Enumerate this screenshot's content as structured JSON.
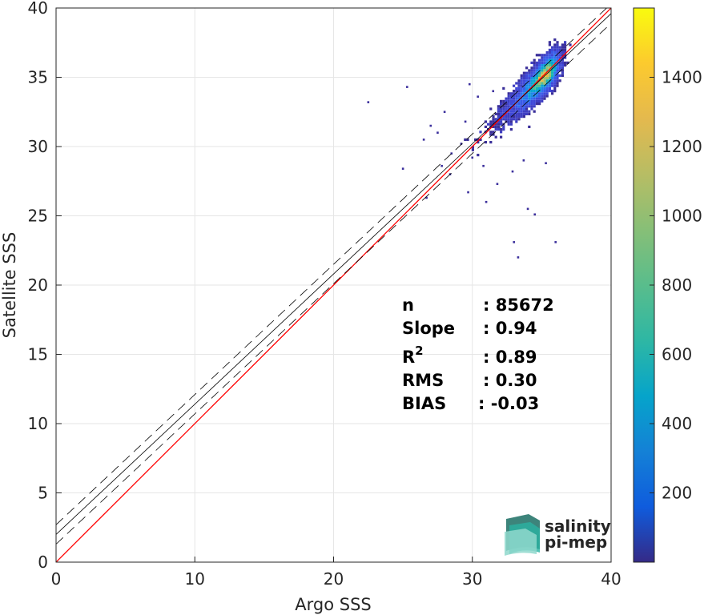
{
  "chart_data": {
    "type": "heatmap",
    "subtype": "density-scatter",
    "xlabel": "Argo SSS",
    "ylabel": "Satellite SSS",
    "xlim": [
      0,
      40
    ],
    "ylim": [
      0,
      40
    ],
    "xticks": [
      0,
      10,
      20,
      30,
      40
    ],
    "yticks": [
      0,
      5,
      10,
      15,
      20,
      25,
      30,
      35,
      40
    ],
    "grid": true,
    "colorbar": {
      "range": [
        0,
        1600
      ],
      "ticks": [
        200,
        400,
        600,
        800,
        1000,
        1200,
        1400
      ],
      "colormap": "parula"
    },
    "one_to_one_line": {
      "color": "#ff0000",
      "x": [
        0,
        40
      ],
      "y": [
        0,
        40
      ]
    },
    "fit_line": {
      "slope": 0.94,
      "intercept": 2.0,
      "color": "#000000"
    },
    "fit_bounds": {
      "offset": 0.7,
      "style": "dashed",
      "color": "#000000"
    },
    "density_cluster": {
      "core_x": [
        31.5,
        38
      ],
      "core_y": [
        32,
        38
      ],
      "peak_at": [
        36,
        36.2
      ]
    },
    "outliers": [
      {
        "x": 22.5,
        "y": 33.2
      },
      {
        "x": 25.3,
        "y": 34.3
      },
      {
        "x": 25.0,
        "y": 28.4
      },
      {
        "x": 26.5,
        "y": 30.5
      },
      {
        "x": 27.0,
        "y": 31.5
      },
      {
        "x": 27.5,
        "y": 31.0
      },
      {
        "x": 28.0,
        "y": 32.5
      },
      {
        "x": 28.5,
        "y": 29.5
      },
      {
        "x": 29.2,
        "y": 30.2
      },
      {
        "x": 29.5,
        "y": 31.8
      },
      {
        "x": 30.0,
        "y": 29.2
      },
      {
        "x": 30.8,
        "y": 28.6
      },
      {
        "x": 29.7,
        "y": 26.7
      },
      {
        "x": 26.7,
        "y": 26.3
      },
      {
        "x": 33.0,
        "y": 23.1
      },
      {
        "x": 33.3,
        "y": 22.0
      },
      {
        "x": 34.5,
        "y": 25.1
      },
      {
        "x": 36.0,
        "y": 23.1
      },
      {
        "x": 31.8,
        "y": 27.3
      },
      {
        "x": 32.9,
        "y": 28.2
      },
      {
        "x": 33.7,
        "y": 29.0
      },
      {
        "x": 35.3,
        "y": 28.8
      },
      {
        "x": 34.0,
        "y": 25.5
      },
      {
        "x": 31.0,
        "y": 26.0
      },
      {
        "x": 27.8,
        "y": 28.6
      },
      {
        "x": 28.4,
        "y": 28.0
      },
      {
        "x": 31.5,
        "y": 34.0
      },
      {
        "x": 30.4,
        "y": 33.6
      },
      {
        "x": 29.8,
        "y": 34.5
      }
    ],
    "stats": [
      {
        "label": "n",
        "value": ": 85672"
      },
      {
        "label": "Slope",
        "value": ": 0.94"
      },
      {
        "label": "R",
        "superscript": "2",
        "value": ": 0.89"
      },
      {
        "label": "RMS",
        "value": ": 0.30"
      },
      {
        "label": "BIAS",
        "value": ": -0.03"
      }
    ]
  },
  "logo": {
    "line1": "salinity",
    "line2": "pi-mep"
  },
  "colors": {
    "axis": "#262626",
    "grid": "#e6e6e6",
    "one_to_one": "#ff0000",
    "logo_top": "#2ab3a3",
    "logo_bottom": "#1b6f64"
  }
}
